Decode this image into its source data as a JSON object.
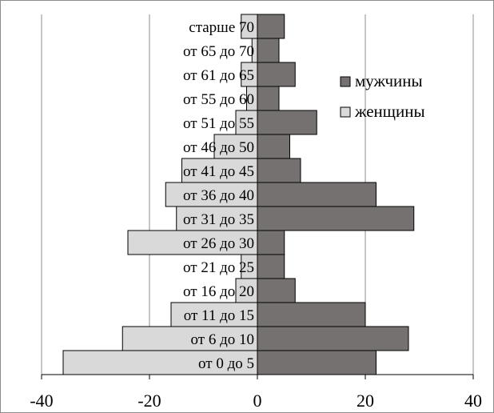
{
  "chart_data": {
    "type": "bar",
    "orientation": "horizontal",
    "stacked_diverging": true,
    "categories": [
      "от 0 до 5",
      "от 6 до 10",
      "от 11 до 15",
      "от 16 до 20",
      "от 21 до 25",
      "от 26 до 30",
      "от 31 до 35",
      "от 36 до 40",
      "от 41 до 45",
      "от 46 до 50",
      "от 51 до 55",
      "от 55 до 60",
      "от 61 до 65",
      "от 65 до 70",
      "старше 70"
    ],
    "series": [
      {
        "name": "мужчины",
        "color": "#767171",
        "values": [
          22,
          28,
          20,
          7,
          5,
          5,
          29,
          22,
          8,
          6,
          11,
          4,
          7,
          4,
          5
        ]
      },
      {
        "name": "женщины",
        "color": "#d9d9d9",
        "values": [
          -36,
          -25,
          -16,
          -4,
          -3,
          -24,
          -15,
          -17,
          -14,
          -8,
          -4,
          -2,
          -3,
          -1,
          -3
        ]
      }
    ],
    "xlim": [
      -40,
      40
    ],
    "x_ticks": [
      -40,
      -20,
      0,
      20,
      40
    ],
    "x_tick_labels": [
      "-40",
      "-20",
      "0",
      "20",
      "40"
    ],
    "grid": "vertical",
    "legend_position": "right",
    "title": "",
    "xlabel": "",
    "ylabel": ""
  }
}
